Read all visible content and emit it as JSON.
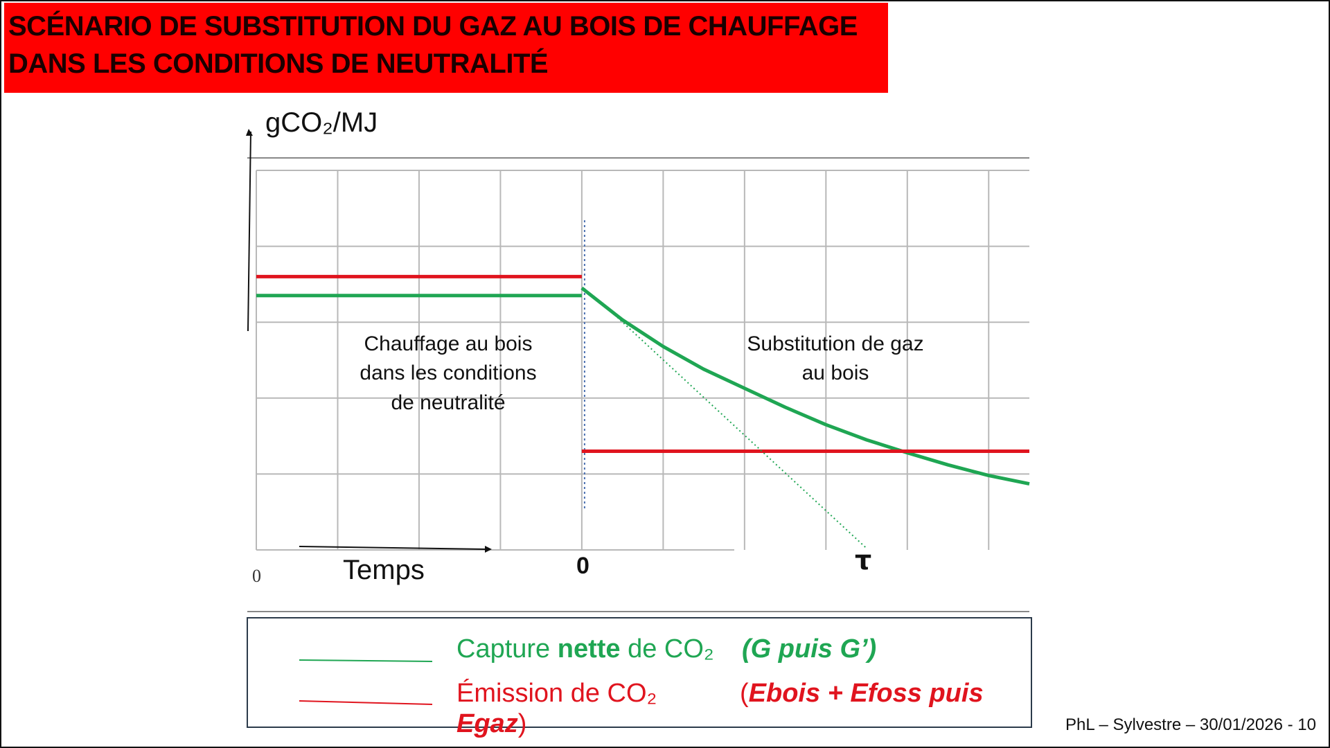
{
  "title": {
    "line1": "SCÉNARIO DE SUBSTITUTION DU GAZ AU BOIS DE CHAUFFAGE",
    "line2": "DANS LES CONDITIONS DE NEUTRALITÉ"
  },
  "colors": {
    "title_bg": "#ff0000",
    "capture": "#1fa653",
    "emission": "#e0141e",
    "marker": "#4a6fb0"
  },
  "chart_data": {
    "type": "line",
    "ylabel": "gCO₂/MJ",
    "xlabel": "Temps",
    "origin_label": "0",
    "tick_labels": {
      "zero": "0",
      "tau": "τ"
    },
    "regions": [
      {
        "lines": [
          "Chauffage au bois",
          "dans les conditions",
          "de neutralité"
        ]
      },
      {
        "lines": [
          "Substitution de gaz",
          "au bois"
        ]
      }
    ],
    "x_range": [
      -4,
      5.5
    ],
    "y_range": [
      0,
      5
    ],
    "grid": true,
    "series": [
      {
        "name": "Capture nette de CO₂",
        "color": "#1fa653",
        "segments": [
          [
            [
              -4,
              3.35
            ],
            [
              0,
              3.35
            ]
          ],
          [
            [
              0,
              3.45
            ],
            [
              0.5,
              3.03
            ],
            [
              1,
              2.68
            ],
            [
              1.5,
              2.38
            ],
            [
              2,
              2.13
            ],
            [
              2.5,
              1.88
            ],
            [
              3,
              1.65
            ],
            [
              3.5,
              1.45
            ],
            [
              4,
              1.28
            ],
            [
              4.5,
              1.12
            ],
            [
              5,
              0.98
            ],
            [
              5.5,
              0.87
            ]
          ]
        ]
      },
      {
        "name": "Émission de CO₂",
        "color": "#e0141e",
        "segments": [
          [
            [
              -4,
              3.6
            ],
            [
              0,
              3.6
            ]
          ],
          [
            [
              0,
              1.3
            ],
            [
              5.5,
              1.3
            ]
          ]
        ]
      },
      {
        "name": "tangent",
        "color": "#1fa653",
        "style": "dotted",
        "segments": [
          [
            [
              0.4,
              3.1
            ],
            [
              3.5,
              0.02
            ]
          ]
        ]
      }
    ]
  },
  "legend": {
    "capture": {
      "prefix": "Capture ",
      "bold": "nette",
      "suffix": " de CO₂",
      "formula": "(G puis G’)"
    },
    "emission": {
      "label": "Émission de CO₂",
      "formula_open": "(",
      "formula": "Ebois + Efoss  puis",
      "formula_cont": "Egaz",
      "formula_close": ")"
    }
  },
  "footer": "PhL – Sylvestre – 30/01/2026 - 10"
}
